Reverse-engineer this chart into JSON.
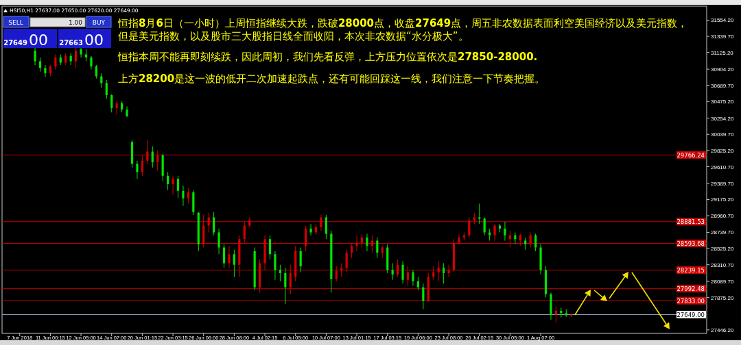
{
  "chart_data": {
    "type": "candlestick",
    "categories": [
      "7 Jun 2018",
      null,
      null,
      null,
      null,
      null,
      "11 Jun 00:15",
      null,
      null,
      null,
      null,
      null,
      "12 Jun 05:00",
      null,
      null,
      null,
      null,
      null,
      "14 Jun 07:00",
      null,
      null,
      null,
      null,
      null,
      "20 Jun 01:15",
      null,
      null,
      null,
      null,
      null,
      "22 Jun 03:15",
      null,
      null,
      null,
      null,
      null,
      "26 Jun 06:00",
      null,
      null,
      null,
      null,
      null,
      "28 Jun 08:00",
      null,
      null,
      null,
      null,
      null,
      "4 Jul 02:15",
      null,
      null,
      null,
      null,
      null,
      "6 Jul 05:00",
      null,
      null,
      null,
      null,
      null,
      "10 Jul 07:00",
      null,
      null,
      null,
      null,
      null,
      "13 Jul 01:15",
      null,
      null,
      null,
      null,
      null,
      "17 Jul 03:15",
      null,
      null,
      null,
      null,
      null,
      "19 Jul 06:00",
      null,
      null,
      null,
      null,
      null,
      "23 Jul 08:00",
      null,
      null,
      null,
      null,
      null,
      "26 Jul 02:15",
      null,
      null,
      null,
      null,
      null,
      "30 Jul 05:00",
      null,
      null,
      null,
      null,
      null,
      "1 Aug 07:00",
      null,
      null,
      null,
      null,
      null,
      null,
      null,
      null,
      null,
      null,
      null,
      null,
      null,
      null,
      null,
      null,
      null,
      null,
      null,
      null,
      null,
      null,
      null,
      null,
      null,
      null,
      null,
      null,
      null,
      null,
      null,
      null
    ],
    "ohlc": [
      null,
      null,
      null,
      [
        31150,
        31190,
        30960,
        31010
      ],
      [
        31010,
        31060,
        30870,
        30920
      ],
      [
        30920,
        30960,
        30800,
        30850
      ],
      [
        30850,
        30960,
        30810,
        30940
      ],
      [
        30940,
        31100,
        30900,
        31060
      ],
      [
        31060,
        31100,
        30960,
        30990
      ],
      [
        30990,
        31120,
        30960,
        31080
      ],
      [
        31080,
        31120,
        30960,
        31010
      ],
      [
        31010,
        31190,
        30920,
        31150
      ],
      [
        31170,
        31190,
        31060,
        31100
      ],
      [
        31100,
        31170,
        31010,
        31060
      ],
      [
        31060,
        31080,
        30900,
        30940
      ],
      [
        30940,
        30960,
        30780,
        30810
      ],
      [
        30810,
        30850,
        30660,
        30720
      ],
      [
        30720,
        30760,
        30510,
        30560
      ],
      [
        30560,
        30570,
        30330,
        30390
      ],
      [
        30390,
        30480,
        30300,
        30450
      ],
      [
        30450,
        30480,
        30330,
        30370
      ],
      [
        30370,
        30410,
        30270,
        30280
      ],
      [
        29940,
        29960,
        29600,
        29650
      ],
      [
        29650,
        29690,
        29450,
        29540
      ],
      [
        29540,
        29760,
        29490,
        29690
      ],
      [
        29690,
        29970,
        29650,
        29810
      ],
      [
        29810,
        29880,
        29600,
        29670
      ],
      [
        29670,
        29830,
        29560,
        29760
      ],
      [
        29760,
        29780,
        29420,
        29490
      ],
      [
        29490,
        29540,
        29300,
        29380
      ],
      [
        29380,
        29490,
        29240,
        29450
      ],
      [
        29450,
        29490,
        29190,
        29290
      ],
      [
        29290,
        29360,
        29090,
        29190
      ],
      [
        29190,
        29330,
        29120,
        29270
      ],
      [
        29270,
        29300,
        28970,
        29010
      ],
      [
        29000,
        29010,
        28490,
        28580
      ],
      [
        28580,
        28970,
        28540,
        28830
      ],
      [
        28830,
        29000,
        28740,
        28940
      ],
      [
        28940,
        29010,
        28700,
        28740
      ],
      [
        28740,
        28790,
        28450,
        28540
      ],
      [
        28540,
        28580,
        28270,
        28330
      ],
      [
        28330,
        28560,
        28270,
        28450
      ],
      [
        28450,
        28510,
        28150,
        28310
      ],
      [
        28310,
        28700,
        28150,
        28650
      ],
      [
        28650,
        28880,
        28600,
        28830
      ],
      [
        28830,
        28940,
        28810,
        28900
      ],
      [
        28490,
        28540,
        27970,
        28010
      ],
      [
        28010,
        28380,
        27940,
        28330
      ],
      [
        28330,
        28700,
        28240,
        28650
      ],
      [
        28650,
        28700,
        28380,
        28450
      ],
      [
        28450,
        28490,
        28110,
        28240
      ],
      [
        28240,
        28310,
        28090,
        28200
      ],
      [
        28200,
        28270,
        27790,
        28010
      ],
      [
        28010,
        28310,
        27920,
        28200
      ],
      [
        28150,
        28560,
        28090,
        28490
      ],
      [
        28490,
        28540,
        28210,
        28290
      ],
      [
        28560,
        28830,
        28490,
        28790
      ],
      [
        28790,
        28850,
        28700,
        28740
      ],
      [
        28740,
        28850,
        28700,
        28810
      ],
      [
        28810,
        28970,
        28760,
        28940
      ],
      [
        28940,
        28970,
        28650,
        28720
      ],
      [
        28720,
        28760,
        27940,
        28120
      ],
      [
        28120,
        28290,
        28090,
        28230
      ],
      [
        28230,
        28330,
        28150,
        28270
      ],
      [
        28270,
        28510,
        28210,
        28470
      ],
      [
        28470,
        28600,
        28400,
        28560
      ],
      [
        28560,
        28700,
        28490,
        28600
      ],
      [
        28600,
        28720,
        28540,
        28670
      ],
      [
        28670,
        28720,
        28490,
        28560
      ],
      [
        28560,
        28700,
        28470,
        28630
      ],
      [
        28630,
        28670,
        28400,
        28470
      ],
      [
        28470,
        28560,
        28400,
        28540
      ],
      [
        28540,
        28580,
        28200,
        28240
      ],
      [
        28240,
        28330,
        28110,
        28180
      ],
      [
        28180,
        28380,
        28150,
        28310
      ],
      [
        28310,
        28360,
        28060,
        28110
      ],
      [
        28110,
        28290,
        28030,
        28210
      ],
      [
        28210,
        28240,
        28030,
        28090
      ],
      [
        28090,
        28150,
        27970,
        28010
      ],
      [
        28010,
        28060,
        27720,
        27830
      ],
      [
        27830,
        28200,
        27820,
        28150
      ],
      [
        28150,
        28290,
        28110,
        28210
      ],
      [
        28210,
        28360,
        28090,
        28270
      ],
      [
        28270,
        28330,
        28060,
        28200
      ],
      [
        28200,
        28310,
        28150,
        28240
      ],
      [
        28240,
        28650,
        28210,
        28600
      ],
      [
        28600,
        28710,
        28580,
        28670
      ],
      [
        28670,
        28740,
        28630,
        28700
      ],
      [
        28700,
        28940,
        28670,
        28900
      ],
      [
        28900,
        29000,
        28850,
        28940
      ],
      [
        28940,
        29120,
        28850,
        28920
      ],
      [
        28920,
        28940,
        28700,
        28740
      ],
      [
        28740,
        28790,
        28630,
        28700
      ],
      [
        28700,
        28850,
        28630,
        28830
      ],
      [
        28830,
        28850,
        28740,
        28790
      ],
      [
        28790,
        28880,
        28630,
        28700
      ],
      [
        28700,
        28760,
        28540,
        28650
      ],
      [
        28650,
        28740,
        28580,
        28700
      ],
      [
        28700,
        28720,
        28560,
        28630
      ],
      [
        28630,
        28670,
        28510,
        28580
      ],
      [
        28580,
        28740,
        28540,
        28700
      ],
      [
        28700,
        28720,
        28490,
        28540
      ],
      [
        28540,
        28580,
        28180,
        28240
      ],
      [
        28240,
        28290,
        27880,
        27920
      ],
      [
        27920,
        27940,
        27580,
        27650
      ],
      [
        27650,
        27760,
        27540,
        27700
      ],
      [
        27700,
        27740,
        27610,
        27670
      ],
      [
        27670,
        27720,
        27620,
        27640
      ],
      [
        27637,
        27650,
        27620,
        27649
      ],
      null,
      null,
      null,
      null,
      null,
      null,
      null,
      null,
      null,
      null,
      null,
      null,
      null,
      null,
      null,
      null,
      null,
      null,
      null,
      null,
      null,
      null,
      null,
      null,
      null,
      null
    ],
    "colors": [
      null,
      null,
      null,
      "#00e600",
      "#00e600",
      "#00e600",
      "#d40000",
      "#d40000",
      "#00e600",
      "#d40000",
      "#00e600",
      "#d40000",
      "#00e600",
      "#00e600",
      "#00e600",
      "#00e600",
      "#00e600",
      "#00e600",
      "#00e600",
      "#d40000",
      "#00e600",
      "#00e600",
      "#00e600",
      "#00e600",
      "#d40000",
      "#d40000",
      "#00e600",
      "#d40000",
      "#00e600",
      "#00e600",
      "#d40000",
      "#00e600",
      "#00e600",
      "#d40000",
      "#00e600",
      "#00e600",
      "#d40000",
      "#d40000",
      "#00e600",
      "#00e600",
      "#00e600",
      "#d40000",
      "#00e600",
      "#d40000",
      "#d40000",
      "#d40000",
      "#00e600",
      "#d40000",
      "#d40000",
      "#00e600",
      "#00e600",
      "#00e600",
      "#00e600",
      "#d40000",
      "#d40000",
      "#00e600",
      "#d40000",
      "#00e600",
      "#d40000",
      "#d40000",
      "#00e600",
      "#00e600",
      "#d40000",
      "#d40000",
      "#d40000",
      "#d40000",
      "#d40000",
      "#d40000",
      "#00e600",
      "#d40000",
      "#00e600",
      "#d40000",
      "#00e600",
      "#00e600",
      "#d40000",
      "#00e600",
      "#d40000",
      "#00e600",
      "#00e600",
      "#00e600",
      "#d40000",
      "#d40000",
      "#d40000",
      "#00e600",
      "#d40000",
      "#d40000",
      "#d40000",
      "#d40000",
      "#d40000",
      "#d40000",
      "#00e600",
      "#00e600",
      "#00e600",
      "#d40000",
      "#00e600",
      "#00e600",
      "#d40000",
      "#00e600",
      "#d40000",
      "#00e600",
      "#d40000",
      "#00e600",
      "#00e600",
      "#00e600",
      "#00e600",
      "#d40000",
      "#00e600",
      "#00e600",
      "#d40000",
      null,
      null,
      null,
      null,
      null,
      null,
      null,
      null,
      null,
      null,
      null,
      null,
      null,
      null,
      null,
      null,
      null,
      null,
      null,
      null,
      null,
      null,
      null,
      null,
      null,
      null
    ],
    "ylim": [
      27400,
      31740
    ],
    "yticks": [
      {
        "value": 31554.2,
        "label": "31554.20"
      },
      {
        "value": 31339.7,
        "label": "31339.70"
      },
      {
        "value": 31125.2,
        "label": "31125.20"
      },
      {
        "value": 30904.2,
        "label": "30904.20"
      },
      {
        "value": 30689.7,
        "label": "30689.70"
      },
      {
        "value": 30475.2,
        "label": "30475.20"
      },
      {
        "value": 30254.2,
        "label": "30254.20"
      },
      {
        "value": 30039.7,
        "label": "30039.70"
      },
      {
        "value": 29825.2,
        "label": "29825.20"
      },
      {
        "value": 29610.7,
        "label": "29610.70"
      },
      {
        "value": 29389.7,
        "label": "29389.70"
      },
      {
        "value": 29175.2,
        "label": "29175.20"
      },
      {
        "value": 28960.7,
        "label": "28960.70"
      },
      {
        "value": 28739.7,
        "label": "28739.70"
      },
      {
        "value": 28525.2,
        "label": "28525.20"
      },
      {
        "value": 28310.7,
        "label": "28310.70"
      },
      {
        "value": 28089.7,
        "label": "28089.70"
      },
      {
        "value": 27875.2,
        "label": "27875.20"
      },
      {
        "value": 27446.2,
        "label": "27446.20"
      }
    ],
    "ref_lines": [
      {
        "axis": "y",
        "value": 29766.24,
        "label": "29766.24",
        "color": "#cc0000"
      },
      {
        "axis": "y",
        "value": 28881.53,
        "label": "28881.53",
        "color": "#cc0000"
      },
      {
        "axis": "y",
        "value": 28593.68,
        "label": "28593.68",
        "color": "#cc0000"
      },
      {
        "axis": "y",
        "value": 28239.15,
        "label": "28239.15",
        "color": "#cc0000"
      },
      {
        "axis": "y",
        "value": 27992.48,
        "label": "27992.48",
        "color": "#cc0000"
      },
      {
        "axis": "y",
        "value": 27833.0,
        "label": "27833.00",
        "color": "#cc0000"
      },
      {
        "axis": "y",
        "value": 27649.0,
        "label": "27649.00",
        "color": "#8fa3b8"
      }
    ],
    "annotations": [
      "HSI50,H1  27637.00 27650.00 27620.00 27649.00",
      "SELL",
      "1.00",
      "BUY",
      "27649",
      "00",
      "27663",
      "00",
      "恒指8月6日（一小时）上周恒指继续大跌，跌破28000点，收盘27649点，周五非农数据表面利空美国经济以及美元指数，",
      "但是美元指数，以及股市三大股指日线全面收阳，本次非农数据“水分极大”。",
      "恒指本周不能再即刻续跌，因此周初，我们先看反弹，上方压力位置依次是27850-28000.",
      "上方28200是这一波的低开二次加速起跌点，还有可能回踩这一线，我们注意一下节奏把握。"
    ]
  }
}
